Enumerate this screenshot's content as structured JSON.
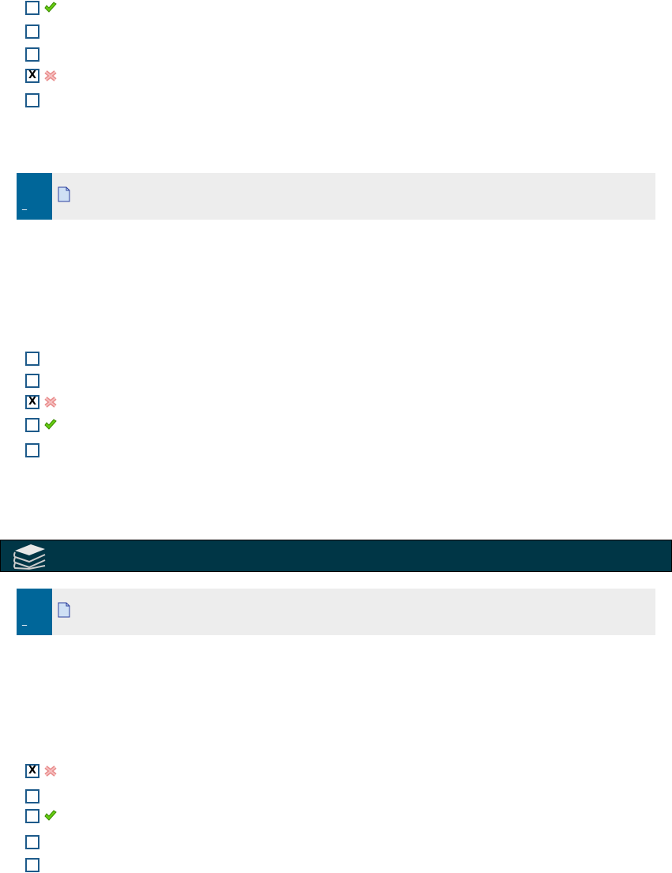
{
  "groups": [
    {
      "options": [
        {
          "checked": false,
          "mark": "check-icon"
        },
        {
          "checked": false,
          "mark": ""
        },
        {
          "checked": false,
          "mark": ""
        },
        {
          "checked": true,
          "mark": "cross-icon"
        },
        {
          "checked": false,
          "mark": ""
        }
      ]
    },
    {
      "options": [
        {
          "checked": false,
          "mark": ""
        },
        {
          "checked": false,
          "mark": ""
        },
        {
          "checked": true,
          "mark": "cross-icon"
        },
        {
          "checked": false,
          "mark": "check-icon"
        },
        {
          "checked": false,
          "mark": ""
        }
      ]
    },
    {
      "options": [
        {
          "checked": true,
          "mark": "cross-icon"
        },
        {
          "checked": false,
          "mark": ""
        },
        {
          "checked": false,
          "mark": "check-icon"
        },
        {
          "checked": false,
          "mark": ""
        },
        {
          "checked": false,
          "mark": ""
        }
      ]
    }
  ],
  "questions": [
    {
      "number": "_"
    },
    {
      "number": "_"
    }
  ],
  "checked_glyph": "X",
  "colors": {
    "question_number_bg": "#006699",
    "question_bg": "#ededed",
    "header_bar": "#003646",
    "checkbox_border": "#1d5a8a"
  }
}
